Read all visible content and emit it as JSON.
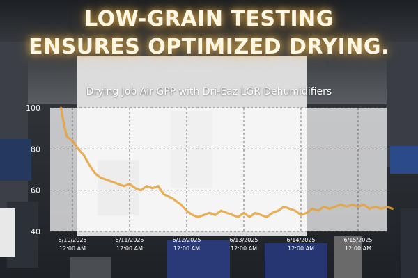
{
  "headline": {
    "line1": "LOW-GRAIN TESTING",
    "line2": "ENSURES OPTIMIZED DRYING."
  },
  "colors": {
    "line": "#e8a23a",
    "headline_glow": "#ffc25a",
    "plot_bg": "#ffffff"
  },
  "chart_data": {
    "type": "line",
    "title": "Drying Job Air GPP with Dri-Eaz LGR Dehumidifiers",
    "xlabel": "",
    "ylabel": "",
    "ylim": [
      40,
      100
    ],
    "yticks": [
      40,
      60,
      80,
      100
    ],
    "grid": true,
    "x_ticks": [
      {
        "date": "6/10/2025",
        "time": "12:00 AM",
        "t": 0
      },
      {
        "date": "6/11/2025",
        "time": "12:00 AM",
        "t": 1
      },
      {
        "date": "6/12/2025",
        "time": "12:00 AM",
        "t": 2
      },
      {
        "date": "6/13/2025",
        "time": "12:00 AM",
        "t": 3
      },
      {
        "date": "6/14/2025",
        "time": "12:00 AM",
        "t": 4
      },
      {
        "date": "6/15/2025",
        "time": "12:00 AM",
        "t": 5
      }
    ],
    "series": [
      {
        "points": [
          [
            -0.2,
            100
          ],
          [
            -0.15,
            92
          ],
          [
            -0.1,
            86
          ],
          [
            0.0,
            84
          ],
          [
            0.1,
            80
          ],
          [
            0.2,
            77
          ],
          [
            0.3,
            72
          ],
          [
            0.4,
            68
          ],
          [
            0.5,
            66
          ],
          [
            0.6,
            65
          ],
          [
            0.7,
            64
          ],
          [
            0.8,
            63
          ],
          [
            0.9,
            62
          ],
          [
            1.0,
            63
          ],
          [
            1.1,
            61
          ],
          [
            1.2,
            60
          ],
          [
            1.3,
            62
          ],
          [
            1.4,
            61
          ],
          [
            1.5,
            62
          ],
          [
            1.6,
            58
          ],
          [
            1.75,
            56
          ],
          [
            1.9,
            53
          ],
          [
            2.0,
            50
          ],
          [
            2.1,
            48
          ],
          [
            2.2,
            47
          ],
          [
            2.3,
            48
          ],
          [
            2.4,
            49
          ],
          [
            2.5,
            48
          ],
          [
            2.6,
            50
          ],
          [
            2.7,
            49
          ],
          [
            2.8,
            48
          ],
          [
            2.9,
            47
          ],
          [
            3.0,
            49
          ],
          [
            3.1,
            47
          ],
          [
            3.2,
            49
          ],
          [
            3.3,
            48
          ],
          [
            3.4,
            47
          ],
          [
            3.5,
            49
          ],
          [
            3.6,
            50
          ],
          [
            3.7,
            52
          ],
          [
            3.8,
            51
          ],
          [
            3.9,
            50
          ],
          [
            4.0,
            48
          ],
          [
            4.1,
            49
          ],
          [
            4.2,
            51
          ],
          [
            4.3,
            50
          ],
          [
            4.4,
            52
          ],
          [
            4.5,
            51
          ],
          [
            4.6,
            52
          ],
          [
            4.7,
            53
          ],
          [
            4.8,
            52
          ],
          [
            4.9,
            53
          ],
          [
            5.0,
            52
          ],
          [
            5.1,
            53
          ],
          [
            5.2,
            51
          ],
          [
            5.3,
            52
          ],
          [
            5.4,
            51
          ],
          [
            5.5,
            52
          ],
          [
            5.6,
            51
          ]
        ]
      }
    ]
  }
}
